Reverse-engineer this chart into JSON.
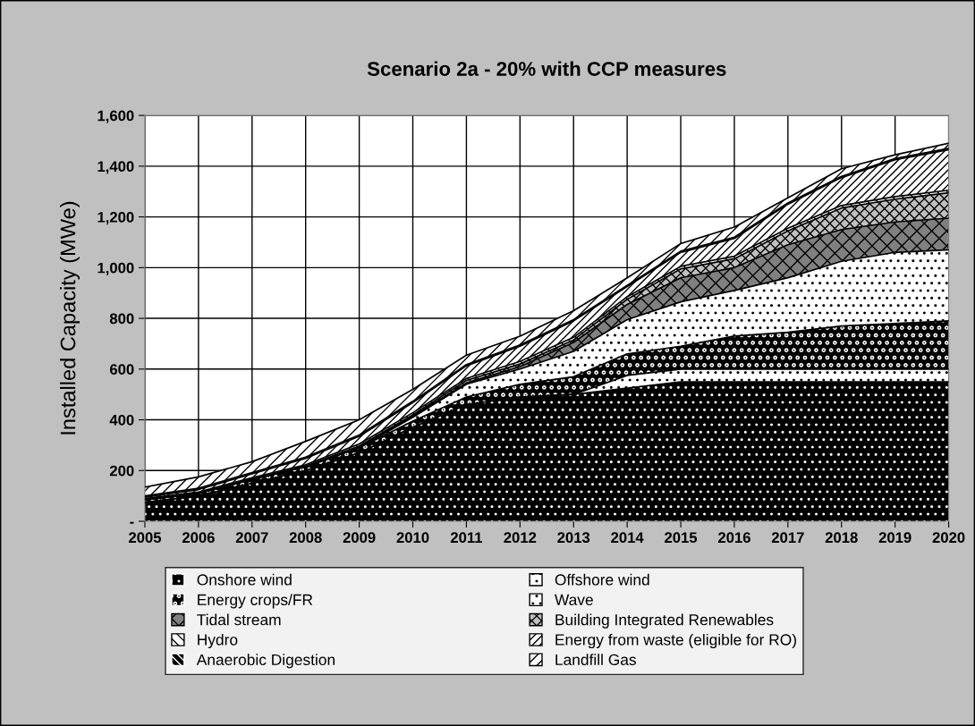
{
  "chart_data": {
    "type": "area",
    "stacked": true,
    "title": "Scenario 2a - 20% with CCP measures",
    "ylabel": "Installed Capacity (MWe)",
    "categories": [
      "2005",
      "2006",
      "2007",
      "2008",
      "2009",
      "2010",
      "2011",
      "2012",
      "2013",
      "2014",
      "2015",
      "2016",
      "2017",
      "2018",
      "2019",
      "2020"
    ],
    "ylim": [
      0,
      1600
    ],
    "yticks": [
      {
        "value": 0,
        "label": "-"
      },
      {
        "value": 200,
        "label": "200"
      },
      {
        "value": 400,
        "label": "400"
      },
      {
        "value": 600,
        "label": "600"
      },
      {
        "value": 800,
        "label": "800"
      },
      {
        "value": 1000,
        "label": "1,000"
      },
      {
        "value": 1200,
        "label": "1,200"
      },
      {
        "value": 1400,
        "label": "1,400"
      },
      {
        "value": 1600,
        "label": "1,600"
      }
    ],
    "grid": true,
    "legend": "bottom",
    "series": [
      {
        "name": "Onshore wind",
        "color": "#000000",
        "values": [
          75,
          100,
          150,
          200,
          270,
          370,
          460,
          490,
          500,
          525,
          550,
          550,
          550,
          550,
          550,
          550
        ]
      },
      {
        "name": "Offshore wind",
        "color": "#ffffff",
        "values": [
          0,
          0,
          0,
          0,
          0,
          0,
          0,
          0,
          0,
          50,
          50,
          50,
          50,
          50,
          50,
          50
        ]
      },
      {
        "name": "Energy crops/FR",
        "color": "#000000",
        "values": [
          10,
          10,
          15,
          15,
          20,
          25,
          30,
          50,
          70,
          85,
          90,
          130,
          145,
          170,
          180,
          190
        ]
      },
      {
        "name": "Wave",
        "color": "#ffffff",
        "values": [
          0,
          0,
          0,
          0,
          0,
          15,
          50,
          60,
          100,
          135,
          175,
          180,
          215,
          255,
          280,
          280
        ]
      },
      {
        "name": "Tidal stream",
        "color": "#808080",
        "values": [
          0,
          0,
          0,
          0,
          2,
          5,
          5,
          10,
          35,
          60,
          95,
          90,
          130,
          125,
          120,
          125
        ]
      },
      {
        "name": "Building Integrated Renewables",
        "color": "#c0c0c0",
        "values": [
          0,
          0,
          2,
          3,
          5,
          5,
          10,
          10,
          10,
          20,
          35,
          35,
          55,
          85,
          90,
          100
        ]
      },
      {
        "name": "Hydro",
        "color": "#ffffff",
        "values": [
          5,
          5,
          5,
          5,
          8,
          8,
          8,
          10,
          10,
          10,
          10,
          10,
          10,
          10,
          10,
          10
        ]
      },
      {
        "name": "Energy from waste (eligible for RO)",
        "color": "#ffffff",
        "values": [
          5,
          10,
          15,
          25,
          30,
          40,
          50,
          60,
          65,
          40,
          55,
          70,
          95,
          110,
          145,
          160
        ]
      },
      {
        "name": "Anaerobic Digestion",
        "color": "#000000",
        "values": [
          5,
          5,
          5,
          5,
          5,
          5,
          5,
          5,
          5,
          5,
          5,
          5,
          5,
          5,
          5,
          5
        ]
      },
      {
        "name": "Landfill Gas",
        "color": "#ffffff",
        "values": [
          35,
          45,
          43,
          62,
          60,
          47,
          37,
          35,
          35,
          30,
          30,
          40,
          20,
          30,
          15,
          20
        ]
      }
    ]
  }
}
